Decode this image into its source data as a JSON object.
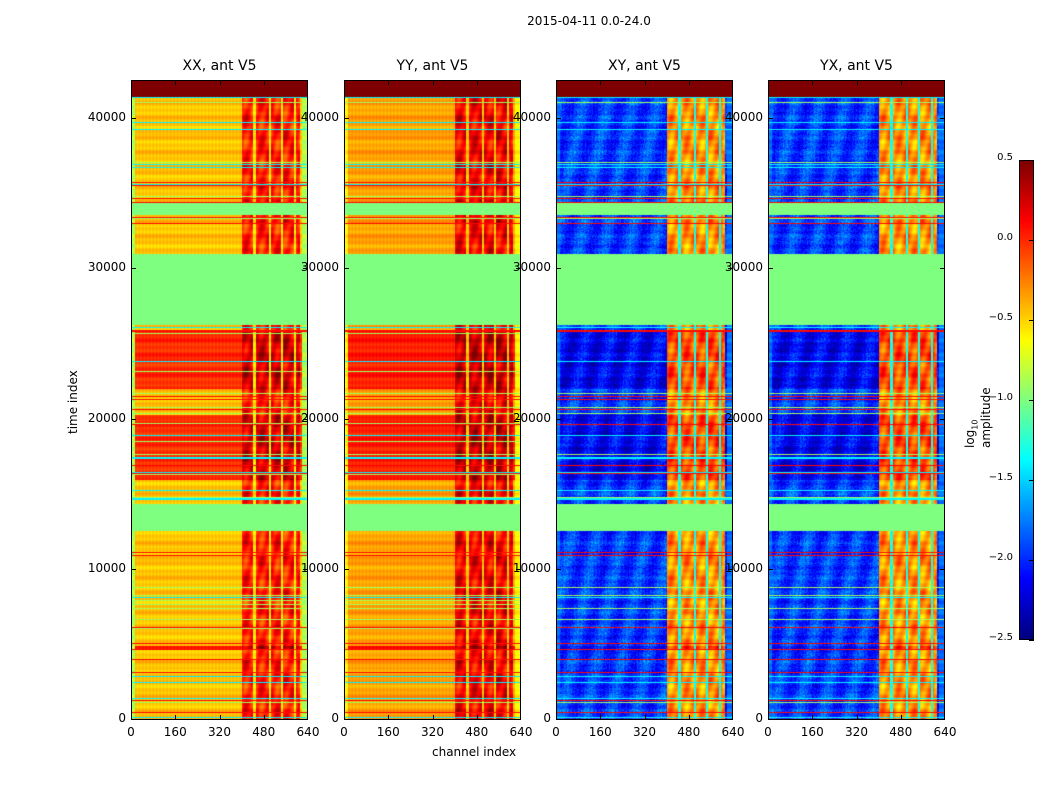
{
  "chart_data": {
    "type": "heatmap",
    "title": "2015-04-11 0.0-24.0",
    "xlabel": "channel index",
    "ylabel": "time index",
    "xlim": [
      0,
      640
    ],
    "ylim": [
      0,
      42600
    ],
    "xticks": [
      "0",
      "160",
      "320",
      "480",
      "640"
    ],
    "yticks": [
      "0",
      "10000",
      "20000",
      "30000",
      "40000"
    ],
    "colormap": "jet",
    "colorbar": {
      "label_prefix": "log",
      "label_sub": "10",
      "label_suffix": " amplitude",
      "range": [
        -2.5,
        0.5
      ],
      "ticks": [
        "0.5",
        "0.0",
        "−0.5",
        "−1.0",
        "−1.5",
        "−2.0",
        "−2.5"
      ]
    },
    "panels": [
      {
        "title": "XX, ant V5",
        "low": -0.45,
        "high": 0.05,
        "edge": -0.85,
        "bright_low": 0.0,
        "bright_high": 0.25
      },
      {
        "title": "YY, ant V5",
        "low": -0.35,
        "high": 0.15,
        "edge": -0.6,
        "bright_low": 0.05,
        "bright_high": 0.3
      },
      {
        "title": "XY, ant V5",
        "low": -1.95,
        "high": -0.3,
        "edge": -1.8,
        "bright_low": -2.15,
        "bright_high": -0.1
      },
      {
        "title": "YX, ant V5",
        "low": -1.95,
        "high": -0.3,
        "edge": -1.8,
        "bright_low": -2.15,
        "bright_high": -0.1
      }
    ],
    "time_segments": [
      {
        "start": 0,
        "end": 4700,
        "kind": "normal"
      },
      {
        "start": 4700,
        "end": 4950,
        "kind": "lines"
      },
      {
        "start": 4950,
        "end": 12600,
        "kind": "normal"
      },
      {
        "start": 12600,
        "end": 14400,
        "kind": "flag"
      },
      {
        "start": 14400,
        "end": 16000,
        "kind": "normal"
      },
      {
        "start": 16000,
        "end": 20300,
        "kind": "bright"
      },
      {
        "start": 20300,
        "end": 22000,
        "kind": "normal"
      },
      {
        "start": 22000,
        "end": 25800,
        "kind": "bright"
      },
      {
        "start": 25800,
        "end": 26300,
        "kind": "normal"
      },
      {
        "start": 26300,
        "end": 31000,
        "kind": "flag"
      },
      {
        "start": 31000,
        "end": 33600,
        "kind": "normal"
      },
      {
        "start": 33600,
        "end": 34400,
        "kind": "flag"
      },
      {
        "start": 34400,
        "end": 41500,
        "kind": "normal"
      },
      {
        "start": 41500,
        "end": 42600,
        "kind": "top"
      }
    ],
    "flag_value": -1.0,
    "top_value": 0.5,
    "active_channels": [
      400,
      610
    ]
  }
}
